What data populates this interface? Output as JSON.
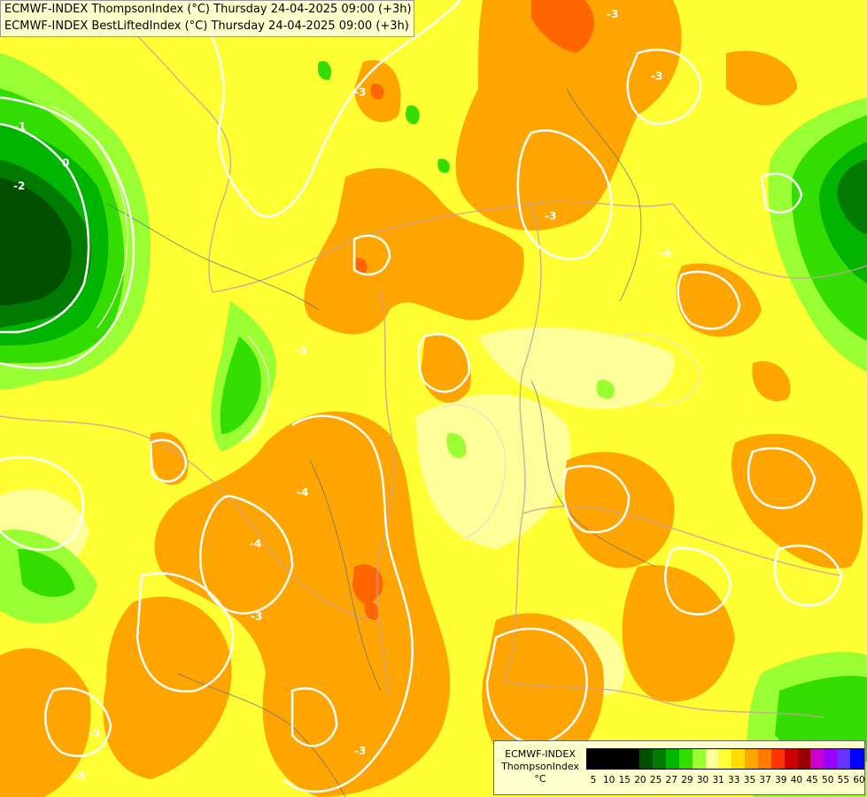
{
  "title": {
    "line1": "ECMWF-INDEX ThompsonIndex (°C) Thursday 24-04-2025 09:00 (+3h)",
    "line2": "ECMWF-INDEX BestLiftedIndex (°C) Thursday 24-04-2025 09:00 (+3h)"
  },
  "legend": {
    "line1": "ECMWF-INDEX",
    "line2": "ThompsonIndex",
    "unit": "°C",
    "colors": [
      "#000000",
      "#000000",
      "#000000",
      "#000000",
      "#005000",
      "#007a00",
      "#00b400",
      "#33dd00",
      "#99ff33",
      "#ffff99",
      "#ffff33",
      "#ffdd00",
      "#ffa500",
      "#ff7a00",
      "#ff3300",
      "#cc0000",
      "#990000",
      "#cc00cc",
      "#9900ff",
      "#6633ff",
      "#0000ff"
    ],
    "ticks": [
      "5",
      "10",
      "15",
      "20",
      "25",
      "27",
      "29",
      "30",
      "31",
      "33",
      "35",
      "37",
      "39",
      "40",
      "45",
      "50",
      "55",
      "60"
    ]
  },
  "map": {
    "contour_labels": [
      "-1",
      "0",
      "-2",
      "-3",
      "-3",
      "-3",
      "-3",
      "-3",
      "-4",
      "-4",
      "-3",
      "-4",
      "-3",
      "-3",
      "-3"
    ]
  }
}
